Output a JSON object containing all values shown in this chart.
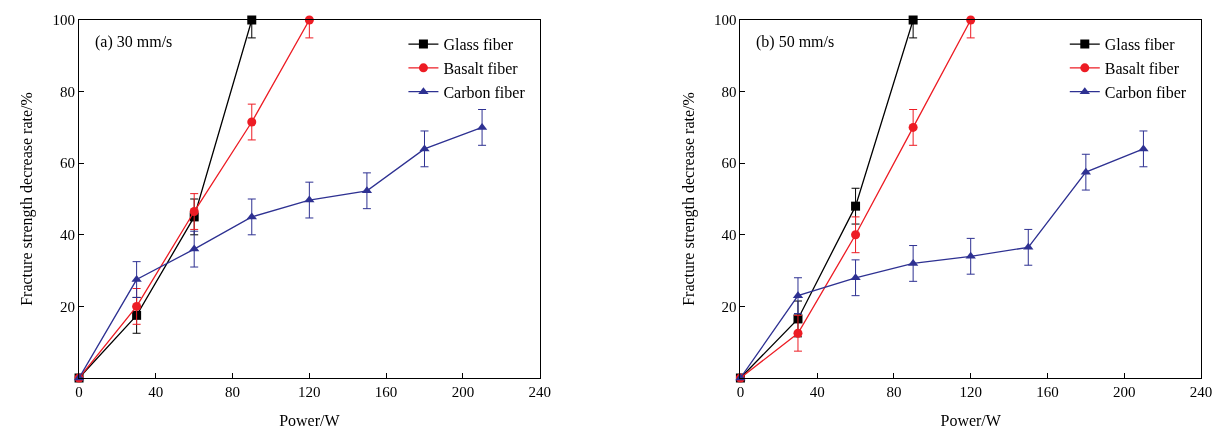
{
  "chart_data": [
    {
      "type": "line",
      "xlabel": "Power/W",
      "ylabel": "Fracture strength decrease rate/%",
      "annotations": [
        "(a) 30 mm/s"
      ],
      "xlim": [
        0,
        240
      ],
      "xticks": [
        0,
        40,
        80,
        120,
        160,
        200,
        240
      ],
      "ylim": [
        0,
        100
      ],
      "yticks": [
        20,
        40,
        60,
        80,
        100
      ],
      "legend": "top right",
      "series": [
        {
          "name": "Glass fiber",
          "color": "#000000",
          "marker": "square",
          "x": [
            0,
            30,
            60,
            90
          ],
          "values": [
            0,
            17.5,
            45,
            100
          ],
          "errors": [
            null,
            5,
            5,
            [
              95,
              100
            ]
          ]
        },
        {
          "name": "Basalt fiber",
          "color": "#ed1c24",
          "marker": "circle",
          "x": [
            0,
            30,
            60,
            90,
            120
          ],
          "values": [
            0,
            20,
            46.5,
            71.5,
            100
          ],
          "errors": [
            null,
            5,
            5,
            5,
            [
              95,
              100
            ]
          ]
        },
        {
          "name": "Carbon fiber",
          "color": "#2e3192",
          "marker": "triangle",
          "x": [
            0,
            30,
            60,
            90,
            120,
            150,
            180,
            210
          ],
          "values": [
            0,
            27.5,
            36,
            45,
            49.7,
            52.3,
            64,
            70
          ],
          "errors": [
            null,
            5,
            5,
            5,
            5,
            5,
            5,
            5
          ]
        }
      ]
    },
    {
      "type": "line",
      "xlabel": "Power/W",
      "ylabel": "Fracture strength decrease rate/%",
      "annotations": [
        "(b) 50 mm/s"
      ],
      "xlim": [
        0,
        240
      ],
      "xticks": [
        0,
        40,
        80,
        120,
        160,
        200,
        240
      ],
      "ylim": [
        0,
        100
      ],
      "yticks": [
        20,
        40,
        60,
        80,
        100
      ],
      "legend": "top right",
      "series": [
        {
          "name": "Glass fiber",
          "color": "#000000",
          "marker": "square",
          "x": [
            0,
            30,
            60,
            90
          ],
          "values": [
            0,
            16.5,
            48,
            100
          ],
          "errors": [
            null,
            5,
            5,
            [
              95,
              100
            ]
          ]
        },
        {
          "name": "Basalt fiber",
          "color": "#ed1c24",
          "marker": "circle",
          "x": [
            0,
            30,
            60,
            90,
            120
          ],
          "values": [
            0,
            12.5,
            40,
            70,
            100
          ],
          "errors": [
            null,
            5,
            5,
            5,
            [
              95,
              100
            ]
          ]
        },
        {
          "name": "Carbon fiber",
          "color": "#2e3192",
          "marker": "triangle",
          "x": [
            0,
            30,
            60,
            90,
            120,
            150,
            180,
            210
          ],
          "values": [
            0,
            23,
            28,
            32,
            34,
            36.5,
            57.5,
            64
          ],
          "errors": [
            null,
            5,
            5,
            5,
            5,
            5,
            5,
            5
          ]
        }
      ]
    }
  ]
}
